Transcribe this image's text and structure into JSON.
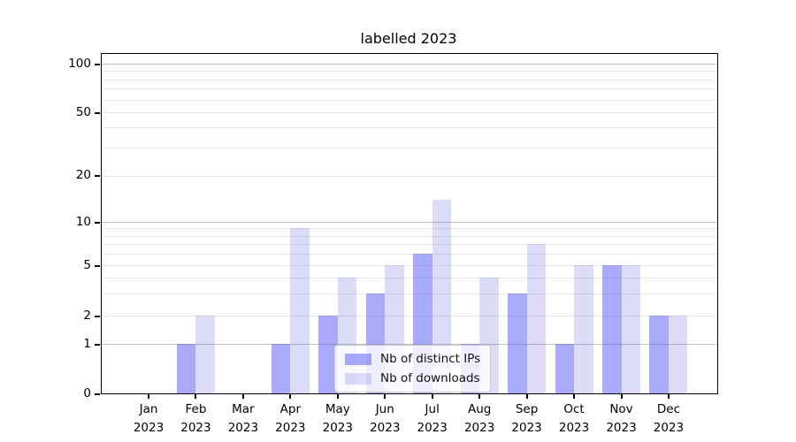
{
  "title": "labelled 2023",
  "chart_data": {
    "type": "bar",
    "title": "labelled 2023",
    "x": {
      "months": [
        "Jan",
        "Feb",
        "Mar",
        "Apr",
        "May",
        "Jun",
        "Jul",
        "Aug",
        "Sep",
        "Oct",
        "Nov",
        "Dec"
      ],
      "year": "2023"
    },
    "series": [
      {
        "name": "Nb of distinct IPs",
        "color": "#a9a9fa",
        "fill": "#5555F580",
        "values": [
          0,
          1,
          0,
          1,
          2,
          3,
          6,
          1,
          3,
          1,
          5,
          2
        ]
      },
      {
        "name": "Nb of downloads",
        "color": "#dcdcf8",
        "fill": "#5050DC33",
        "values": [
          0,
          2,
          0,
          9,
          4,
          5,
          14,
          4,
          7,
          5,
          5,
          2
        ]
      }
    ],
    "y_axis": {
      "scale": "symlog",
      "ticks": [
        0,
        1,
        2,
        5,
        10,
        20,
        50,
        100
      ],
      "decade_gridlines": [
        1,
        10,
        100
      ],
      "minor_gridlines": [
        2,
        3,
        4,
        5,
        6,
        7,
        8,
        9,
        20,
        30,
        40,
        50,
        60,
        70,
        80,
        90
      ],
      "ylim": [
        0,
        115
      ]
    },
    "grid": true,
    "legend": {
      "position": "lower center",
      "entries": [
        "Nb of distinct IPs",
        "Nb of downloads"
      ]
    }
  }
}
